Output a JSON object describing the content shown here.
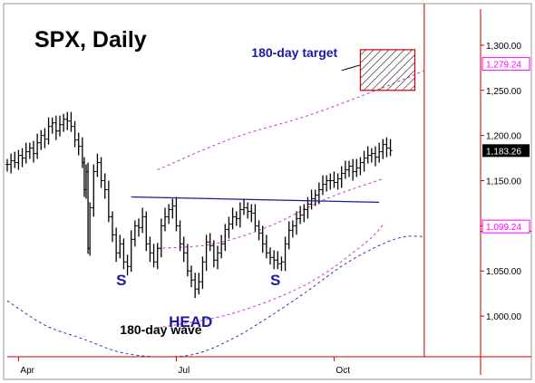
{
  "chart_data": {
    "type": "ohlc",
    "title": "SPX, Daily",
    "xlabel": "",
    "ylabel": "",
    "ylim": [
      955,
      1340
    ],
    "grid": false,
    "y_ticks": [
      1000,
      1050,
      1100,
      1150,
      1200,
      1250,
      1300
    ],
    "y_tick_labels": [
      "1,000.00",
      "1,050.00",
      "1,100.00",
      "1,150.00",
      "1,200.00",
      "1,250.00",
      "1,300.00"
    ],
    "x_ticks": [
      {
        "label": "Apr",
        "day": 6
      },
      {
        "label": "Jul",
        "day": 90
      },
      {
        "label": "Oct",
        "day": 174
      }
    ],
    "x_range": [
      0,
      252
    ],
    "last_price_label": "1,183.26",
    "last_price": 1183.26,
    "level_labels": [
      {
        "value": 1279.24,
        "label": "1,279.24"
      },
      {
        "value": 1099.24,
        "label": "1,099.24"
      }
    ],
    "close_series": [
      [
        0,
        1168
      ],
      [
        2,
        1172
      ],
      [
        4,
        1170
      ],
      [
        6,
        1178
      ],
      [
        8,
        1175
      ],
      [
        10,
        1182
      ],
      [
        12,
        1186
      ],
      [
        14,
        1180
      ],
      [
        16,
        1192
      ],
      [
        18,
        1200
      ],
      [
        20,
        1196
      ],
      [
        22,
        1210
      ],
      [
        24,
        1214
      ],
      [
        26,
        1205
      ],
      [
        28,
        1212
      ],
      [
        30,
        1218
      ],
      [
        32,
        1216
      ],
      [
        34,
        1210
      ],
      [
        36,
        1195
      ],
      [
        38,
        1188
      ],
      [
        40,
        1170
      ],
      [
        41,
        1140
      ],
      [
        42,
        1160
      ],
      [
        43,
        1075
      ],
      [
        44,
        1120
      ],
      [
        46,
        1160
      ],
      [
        48,
        1170
      ],
      [
        50,
        1150
      ],
      [
        52,
        1140
      ],
      [
        54,
        1110
      ],
      [
        56,
        1090
      ],
      [
        58,
        1070
      ],
      [
        60,
        1080
      ],
      [
        62,
        1060
      ],
      [
        64,
        1055
      ],
      [
        66,
        1085
      ],
      [
        68,
        1100
      ],
      [
        70,
        1098
      ],
      [
        72,
        1110
      ],
      [
        74,
        1080
      ],
      [
        76,
        1070
      ],
      [
        78,
        1060
      ],
      [
        80,
        1075
      ],
      [
        82,
        1100
      ],
      [
        84,
        1110
      ],
      [
        86,
        1118
      ],
      [
        88,
        1122
      ],
      [
        90,
        1100
      ],
      [
        92,
        1080
      ],
      [
        94,
        1070
      ],
      [
        96,
        1050
      ],
      [
        98,
        1040
      ],
      [
        100,
        1030
      ],
      [
        102,
        1038
      ],
      [
        104,
        1060
      ],
      [
        106,
        1082
      ],
      [
        108,
        1078
      ],
      [
        110,
        1062
      ],
      [
        112,
        1070
      ],
      [
        114,
        1080
      ],
      [
        116,
        1096
      ],
      [
        118,
        1102
      ],
      [
        120,
        1110
      ],
      [
        122,
        1108
      ],
      [
        124,
        1118
      ],
      [
        126,
        1120
      ],
      [
        128,
        1116
      ],
      [
        130,
        1114
      ],
      [
        132,
        1100
      ],
      [
        134,
        1092
      ],
      [
        136,
        1080
      ],
      [
        138,
        1070
      ],
      [
        140,
        1065
      ],
      [
        142,
        1062
      ],
      [
        144,
        1058
      ],
      [
        146,
        1060
      ],
      [
        148,
        1080
      ],
      [
        150,
        1095
      ],
      [
        152,
        1100
      ],
      [
        154,
        1108
      ],
      [
        156,
        1112
      ],
      [
        158,
        1118
      ],
      [
        160,
        1124
      ],
      [
        162,
        1130
      ],
      [
        164,
        1134
      ],
      [
        166,
        1140
      ],
      [
        168,
        1146
      ],
      [
        170,
        1150
      ],
      [
        172,
        1150
      ],
      [
        174,
        1148
      ],
      [
        176,
        1152
      ],
      [
        178,
        1158
      ],
      [
        180,
        1162
      ],
      [
        182,
        1166
      ],
      [
        184,
        1160
      ],
      [
        186,
        1164
      ],
      [
        188,
        1170
      ],
      [
        190,
        1175
      ],
      [
        192,
        1178
      ],
      [
        194,
        1180
      ],
      [
        196,
        1176
      ],
      [
        198,
        1182
      ],
      [
        200,
        1190
      ],
      [
        202,
        1186
      ],
      [
        204,
        1183.26
      ]
    ],
    "neckline": [
      [
        66,
        1132
      ],
      [
        198,
        1126
      ]
    ],
    "upper_band": [
      [
        80,
        1162
      ],
      [
        120,
        1197
      ],
      [
        160,
        1222
      ],
      [
        200,
        1253
      ],
      [
        222,
        1272
      ]
    ],
    "lower_band": [
      [
        80,
        987
      ],
      [
        120,
        1003
      ],
      [
        160,
        1036
      ],
      [
        190,
        1080
      ],
      [
        200,
        1101
      ]
    ],
    "mid_band": [
      [
        80,
        1075
      ],
      [
        110,
        1080
      ],
      [
        140,
        1100
      ],
      [
        170,
        1130
      ],
      [
        200,
        1152
      ]
    ],
    "target_zone": {
      "day_start": 188,
      "day_end": 217,
      "low": 1250,
      "high": 1295
    },
    "target_line": [
      [
        178,
        1272
      ],
      [
        188,
        1278
      ]
    ],
    "cycle_wave": [
      [
        0,
        1017
      ],
      [
        20,
        990
      ],
      [
        40,
        975
      ],
      [
        60,
        960
      ],
      [
        80,
        955
      ],
      [
        100,
        958
      ],
      [
        120,
        975
      ],
      [
        140,
        1000
      ],
      [
        160,
        1028
      ],
      [
        180,
        1058
      ],
      [
        200,
        1080
      ],
      [
        212,
        1088
      ],
      [
        222,
        1088
      ]
    ],
    "cycle_end_day": 222,
    "annotations": [
      {
        "text": "S",
        "day": 58,
        "value": 1034
      },
      {
        "text": "HEAD",
        "day": 86,
        "value": 988
      },
      {
        "text": "S",
        "day": 140,
        "value": 1034
      },
      {
        "text": "180-day target",
        "day": 130,
        "value": 1287
      },
      {
        "text": "180-day wave",
        "day": 60,
        "value": 980
      }
    ],
    "colors": {
      "price": "#000000",
      "neckline": "#1a1aa0",
      "band": "#cc33cc",
      "wave": "#3333bb",
      "axis": "#cc0000",
      "label_text": "#1a1aa0",
      "magenta_label": "#ff00ff"
    }
  }
}
